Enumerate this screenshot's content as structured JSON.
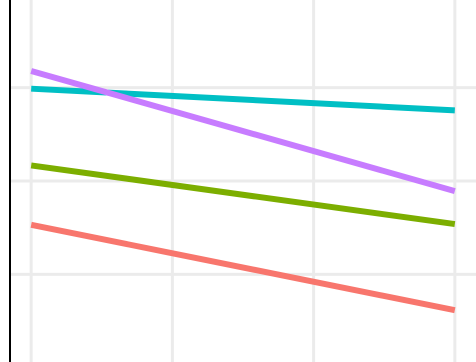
{
  "chart_data": {
    "type": "line",
    "title": "",
    "xlabel": "",
    "ylabel": "",
    "x": [
      0,
      1
    ],
    "xlim": [
      -0.05,
      1.05
    ],
    "ylim": [
      0,
      1
    ],
    "grid": true,
    "legend": "none",
    "series": [
      {
        "color": "#00bfc4",
        "values": [
          0.755,
          0.695
        ]
      },
      {
        "color": "#c77cff",
        "values": [
          0.804,
          0.472
        ]
      },
      {
        "color": "#7cae00",
        "values": [
          0.543,
          0.381
        ]
      },
      {
        "color": "#f8766d",
        "values": [
          0.379,
          0.143
        ]
      }
    ],
    "colors": {
      "grid": "#ebebeb",
      "axis": "#000000",
      "background": "#ffffff"
    }
  }
}
